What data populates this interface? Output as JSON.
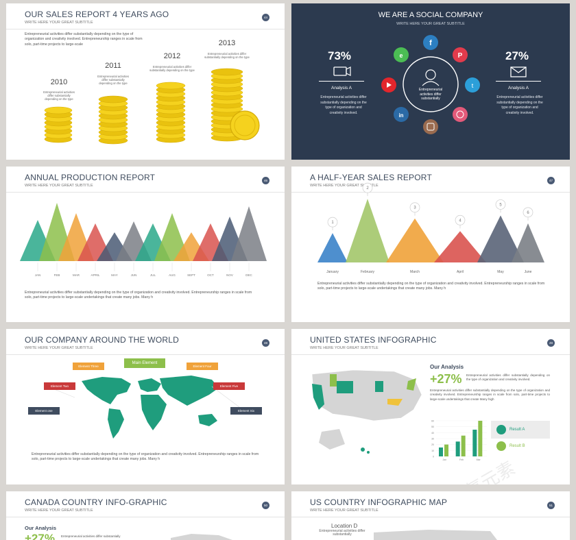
{
  "slides": {
    "s1": {
      "title": "OUR SALES REPORT 4 YEARS AGO",
      "subtitle": "WRITE HERE YOUR GREAT SUBTITLE",
      "number": "44",
      "text": "Entrepreneurial activities differ substantially depending on the type of organization and creativity involved. Entrepreneurship ranges in scale from solo, part-time projects to large-scale",
      "years": [
        {
          "year": "2010",
          "desc": "Entrepreneurial activities differ substantially depending on the type"
        },
        {
          "year": "2011",
          "desc": "Entrepreneurial activities differ substantially depending on the type"
        },
        {
          "year": "2012",
          "desc": "Entrepreneurial activities differ substantially depending on the type"
        },
        {
          "year": "2013",
          "desc": "Entrepreneurial activities differ substantially depending on the type"
        }
      ]
    },
    "s2": {
      "title": "WE ARE A SOCIAL COMPANY",
      "subtitle": "WRITE HERE YOUR GREAT SUBTITLE",
      "left_pct": "73%",
      "left_label": "Analysis A",
      "left_text": "Entrepreneurial activities differ substantially depending on the type of organization and creativity involved.",
      "right_pct": "27%",
      "right_label": "Analysis A",
      "right_text": "Entrepreneurial activities differ substantially depending on the type of organization and creativity involved.",
      "center_text": "Entrepreneurial activities differ substantially",
      "colors": {
        "bg": "#2c3a4f"
      }
    },
    "s3": {
      "title": "ANNUAL PRODUCTION REPORT",
      "subtitle": "WRITE HERE YOUR GREAT SUBTITLE",
      "number": "46",
      "months": [
        "JAN",
        "FEB",
        "MAR",
        "APRIL",
        "MAY",
        "JUN",
        "JUL",
        "AUG",
        "SEPT",
        "OCT",
        "NOV",
        "DEC"
      ],
      "text": "Entrepreneurial activities differ substantially depending on the type of organization and creativity involved. Entrepreneurship ranges in scale from solo, part-time projects to large-scale undertakings that create many jobs. Many h"
    },
    "s4": {
      "title": "A HALF-YEAR SALES REPORT",
      "subtitle": "WRITE HERE YOUR GREAT SUBTITLE",
      "number": "47",
      "text": "Entrepreneurial activities differ substantially depending on the type of organization and creativity involved. Entrepreneurship ranges in scale from solo, part-time projects to large-scale undertakings that create many jobs. Many h"
    },
    "s5": {
      "title": "OUR COMPANY AROUND THE WORLD",
      "subtitle": "WRITE HERE YOUR GREAT SUBTITLE",
      "number": "48",
      "main": "Main Element",
      "e1": "Element one",
      "e2": "Element Two",
      "e3": "Element Three",
      "e4": "Element Four",
      "e5": "Element Five",
      "e6": "Element Six",
      "text": "Entrepreneurial activities differ substantially depending on the type of organization and creativity involved. Entrepreneurship ranges in scale from solo, part-time projects to large-scale undertakings that create many jobs. Many h"
    },
    "s6": {
      "title": "UNITED STATES INFOGRAPHIC",
      "subtitle": "WRITE HERE YOUR GREAT SUBTITLE",
      "number": "49",
      "analysis_title": "Our Analysis",
      "pct": "+27%",
      "pct_text": "Entrepreneurial activities differ substantially depending on the type of organization and creativity involved.",
      "body": "Entrepreneurial activities differ substantially depending on the type of organization and creativity involved. Entrepreneurship ranges in scale from solo, part-time projects to large-scale undertakings that create Many high",
      "result_a": "Result A",
      "result_b": "Result B",
      "bar_months": [
        "Jan",
        "Feb",
        "Mar"
      ]
    },
    "s7": {
      "title": "CANADA COUNTRY INFO-GRAPHIC",
      "subtitle": "WRITE HERE YOUR GREAT SUBTITLE",
      "number": "50",
      "analysis_title": "Our Analysis",
      "pct": "+27%",
      "pct_text": "Entrepreneurial activities differ substantially"
    },
    "s8": {
      "title": "US COUNTRY INFOGRAPHIC MAP",
      "subtitle": "WRITE HERE YOUR GREAT SUBTITLE",
      "number": "51",
      "location": "Location D",
      "location_text": "Entrepreneurial activities differ substantially"
    }
  },
  "chart_data": [
    {
      "type": "area",
      "categories": [
        "JAN",
        "FEB",
        "MAR",
        "APRIL",
        "MAY",
        "JUN",
        "JUL",
        "AUG",
        "SEPT",
        "OCT",
        "NOV",
        "DEC"
      ],
      "values": [
        60,
        85,
        70,
        55,
        42,
        58,
        55,
        70,
        42,
        55,
        65,
        80
      ],
      "colors": [
        "#2aa88a",
        "#8dbf4b",
        "#f0a23a",
        "#d9534f",
        "#4a5a74",
        "#7b7f86",
        "#2aa88a",
        "#8dbf4b",
        "#f0a23a",
        "#d9534f",
        "#4a5a74",
        "#7b7f86"
      ]
    },
    {
      "type": "area",
      "categories": [
        "January",
        "February",
        "March",
        "April",
        "May",
        "June"
      ],
      "point_labels": [
        "1",
        "2",
        "3",
        "4",
        "5",
        "6"
      ],
      "values": [
        30,
        65,
        45,
        32,
        48,
        40
      ],
      "colors": [
        "#3b83c9",
        "#a3c76a",
        "#f0a23a",
        "#d9534f",
        "#5a6478",
        "#7b7f86"
      ]
    },
    {
      "type": "bar",
      "categories": [
        "Jan",
        "Feb",
        "Mar"
      ],
      "series": [
        {
          "values": [
            15,
            25,
            45
          ]
        },
        {
          "values": [
            20,
            35,
            60
          ]
        }
      ],
      "ylim": [
        0,
        60
      ],
      "yticks": [
        "0",
        "10",
        "20",
        "30",
        "40",
        "50",
        "60"
      ]
    }
  ]
}
